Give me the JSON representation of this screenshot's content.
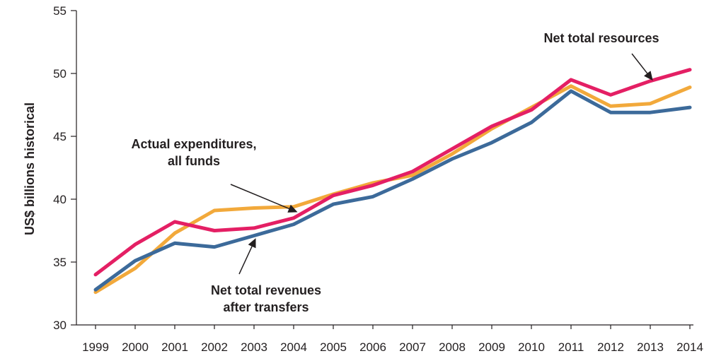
{
  "chart_data": {
    "type": "line",
    "title": "",
    "xlabel": "",
    "ylabel": "US$ billions historical",
    "ylim": [
      30,
      55
    ],
    "yticks": [
      30,
      35,
      40,
      45,
      50,
      55
    ],
    "grid": false,
    "legend": "none",
    "categories": [
      "1999",
      "2000",
      "2001",
      "2002",
      "2003",
      "2004",
      "2005",
      "2006",
      "2007",
      "2008",
      "2009",
      "2010",
      "2011",
      "2012",
      "2013",
      "2014"
    ],
    "series": [
      {
        "name": "Actual expenditures, all funds",
        "color": "#f2a93b",
        "values": [
          32.6,
          34.5,
          37.3,
          39.1,
          39.3,
          39.4,
          40.4,
          41.3,
          41.9,
          43.6,
          45.6,
          47.3,
          49.0,
          47.4,
          47.6,
          48.9
        ]
      },
      {
        "name": "Net total revenues after transfers",
        "color": "#3c6a9a",
        "values": [
          32.8,
          35.1,
          36.5,
          36.2,
          37.1,
          38.0,
          39.6,
          40.2,
          41.6,
          43.2,
          44.5,
          46.1,
          48.6,
          46.9,
          46.9,
          47.3
        ]
      },
      {
        "name": "Net total resources",
        "color": "#e41f64",
        "values": [
          34.0,
          36.4,
          38.2,
          37.5,
          37.7,
          38.5,
          40.3,
          41.1,
          42.2,
          44.0,
          45.8,
          47.1,
          49.5,
          48.3,
          49.4,
          50.3
        ]
      }
    ],
    "annotations": [
      {
        "lines": [
          "Actual expenditures,",
          "all funds"
        ],
        "series_index": 0,
        "target_x": "2004",
        "target_y": 39.1
      },
      {
        "lines": [
          "Net total revenues",
          "after transfers"
        ],
        "series_index": 1,
        "target_x": "2003",
        "target_y": 36.6
      },
      {
        "lines": [
          "Net total resources"
        ],
        "series_index": 2,
        "target_x": "2013",
        "target_y": 49.7
      }
    ],
    "arrow_color": "#231f20"
  }
}
